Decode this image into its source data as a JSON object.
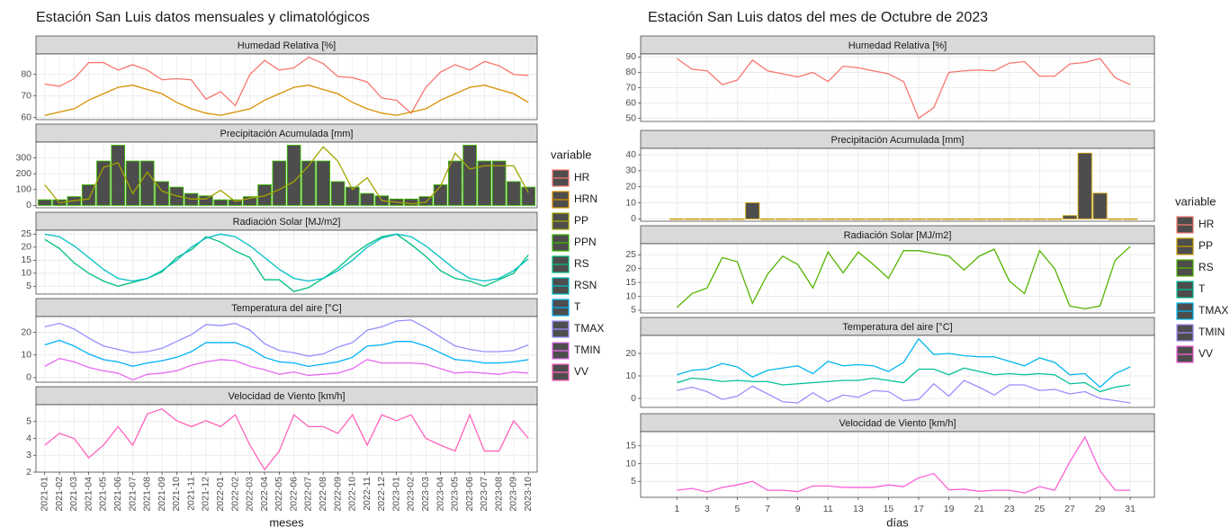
{
  "chart_data": [
    {
      "type": "facet",
      "title": "Estación San Luis datos mensuales y climatológicos",
      "xlabel": "meses",
      "legend_title": "variable",
      "categories": [
        "2021-01",
        "2021-02",
        "2021-03",
        "2021-04",
        "2021-05",
        "2021-06",
        "2021-07",
        "2021-08",
        "2021-09",
        "2021-10",
        "2021-11",
        "2021-12",
        "2022-01",
        "2022-02",
        "2022-03",
        "2022-04",
        "2022-05",
        "2022-06",
        "2022-07",
        "2022-08",
        "2022-09",
        "2022-10",
        "2022-11",
        "2022-12",
        "2023-01",
        "2023-02",
        "2023-03",
        "2023-04",
        "2023-05",
        "2023-06",
        "2023-07",
        "2023-08",
        "2023-09",
        "2023-10"
      ],
      "legend": [
        {
          "name": "HR",
          "color": "#F8766D"
        },
        {
          "name": "HRN",
          "color": "#D89000"
        },
        {
          "name": "PP",
          "color": "#A3A500"
        },
        {
          "name": "PPN",
          "color": "#39B600"
        },
        {
          "name": "RS",
          "color": "#00BF7D"
        },
        {
          "name": "RSN",
          "color": "#00BFC4"
        },
        {
          "name": "T",
          "color": "#00B0F6"
        },
        {
          "name": "TMAX",
          "color": "#9590FF"
        },
        {
          "name": "TMIN",
          "color": "#E76BF3"
        },
        {
          "name": "VV",
          "color": "#FF62BC"
        }
      ],
      "panels": [
        {
          "title": "Humedad Relativa [%]",
          "ylim": [
            59,
            89.5
          ],
          "yticks": [
            60,
            70,
            80
          ],
          "series": [
            {
              "name": "HR",
              "type": "line",
              "color": "#F8766D",
              "values": [
                75.5,
                74.5,
                78,
                85.5,
                85.5,
                82,
                84.5,
                82,
                77.5,
                78,
                77.5,
                68.5,
                72,
                65.5,
                80,
                86.5,
                82,
                83,
                88,
                85,
                79,
                78.5,
                76.5,
                69,
                68,
                62,
                74,
                81,
                84.5,
                82,
                86,
                84,
                80,
                79.5
              ]
            },
            {
              "name": "HRN",
              "type": "line",
              "color": "#D89000",
              "values": [
                61,
                62.5,
                64,
                68,
                71,
                74,
                75,
                73,
                71,
                67,
                64,
                62,
                61,
                62.5,
                64,
                68,
                71,
                74,
                75,
                73,
                71,
                67,
                64,
                62,
                61,
                62.5,
                64,
                68,
                71,
                74,
                75,
                73,
                71,
                67
              ]
            }
          ]
        },
        {
          "title": "Precipitación Acumulada [mm]",
          "ylim": [
            -15,
            400
          ],
          "yticks": [
            0,
            100,
            200,
            300
          ],
          "series": [
            {
              "name": "PPN",
              "type": "bar",
              "color": "#39B600",
              "values": [
                35,
                35,
                55,
                130,
                280,
                380,
                280,
                280,
                150,
                115,
                75,
                60,
                35,
                35,
                55,
                130,
                280,
                380,
                280,
                280,
                150,
                115,
                75,
                60,
                40,
                40,
                55,
                130,
                280,
                380,
                280,
                280,
                150,
                115
              ]
            },
            {
              "name": "PP",
              "type": "line",
              "color": "#A3A500",
              "values": [
                130,
                15,
                30,
                40,
                240,
                270,
                75,
                210,
                90,
                60,
                40,
                40,
                95,
                25,
                45,
                60,
                100,
                150,
                250,
                370,
                280,
                100,
                175,
                30,
                20,
                10,
                20,
                120,
                330,
                230,
                250,
                250,
                250,
                80
              ]
            }
          ]
        },
        {
          "title": "Radiación Solar [MJ/m2]",
          "ylim": [
            2,
            26.5
          ],
          "yticks": [
            5,
            10,
            15,
            20,
            25
          ],
          "series": [
            {
              "name": "RS",
              "type": "line",
              "color": "#00BF7D",
              "values": [
                23,
                19.5,
                14,
                10,
                7,
                5,
                6.5,
                8,
                10.5,
                16,
                19,
                24,
                22,
                18.5,
                16,
                7.5,
                7.5,
                3,
                4.5,
                8,
                12,
                17,
                21,
                24,
                25,
                21,
                16.5,
                11,
                8,
                7,
                5,
                7.5,
                10,
                17
              ]
            },
            {
              "name": "RSN",
              "type": "line",
              "color": "#00BFC4",
              "values": [
                25,
                24,
                20.5,
                16,
                11.5,
                8,
                7,
                8,
                11,
                15,
                20,
                23.5,
                25,
                24,
                20.5,
                16,
                11.5,
                8,
                7,
                8,
                11,
                15,
                20,
                23.5,
                25,
                24,
                20.5,
                16,
                11.5,
                8,
                7,
                8,
                11,
                15.5
              ]
            }
          ]
        },
        {
          "title": "Temperatura del aire [°C]",
          "ylim": [
            -2,
            27
          ],
          "yticks": [
            0,
            10,
            20
          ],
          "series": [
            {
              "name": "TMAX",
              "type": "line",
              "color": "#9590FF",
              "values": [
                22.5,
                24,
                21.5,
                17.5,
                14,
                12.5,
                11,
                11.5,
                13,
                16,
                19,
                23.5,
                23,
                24,
                21,
                15,
                12,
                11,
                9.5,
                10.5,
                13.5,
                15.5,
                21,
                22.5,
                25,
                25.5,
                22,
                18,
                14,
                12.5,
                11.5,
                11.5,
                12,
                14.5
              ]
            },
            {
              "name": "T",
              "type": "line",
              "color": "#00B0F6",
              "values": [
                14.5,
                16.5,
                14,
                10.5,
                8,
                7,
                5,
                6.5,
                7.5,
                9,
                11.5,
                15.5,
                15.5,
                15.5,
                13,
                9,
                7,
                6.5,
                5,
                6,
                7,
                9,
                14,
                14.5,
                16,
                16,
                14,
                11,
                8,
                7.5,
                6.5,
                6.5,
                7,
                8
              ]
            },
            {
              "name": "TMIN",
              "type": "line",
              "color": "#E76BF3",
              "values": [
                5,
                8.5,
                7,
                4.5,
                3,
                2,
                -1,
                1.5,
                2,
                3,
                5.5,
                7,
                8,
                7.5,
                5,
                3.5,
                1.5,
                2.5,
                1,
                1.5,
                2,
                4,
                8,
                6.5,
                6.5,
                6.5,
                6,
                4,
                2,
                2.5,
                2,
                1.5,
                2.5,
                2
              ]
            }
          ]
        },
        {
          "title": "Velocidad de Viento [km/h]",
          "ylim": [
            2,
            6
          ],
          "yticks": [
            2,
            3,
            4,
            5
          ],
          "series": [
            {
              "name": "VV",
              "type": "line",
              "color": "#FF62BC",
              "values": [
                3.6,
                4.3,
                4,
                2.85,
                3.6,
                4.7,
                3.6,
                5.45,
                5.75,
                5.05,
                4.7,
                5.05,
                4.7,
                5.4,
                3.6,
                2.15,
                3.25,
                5.4,
                4.7,
                4.7,
                4.3,
                5.4,
                3.6,
                5.4,
                5.05,
                5.4,
                4,
                3.6,
                3.25,
                5.4,
                3.25,
                3.25,
                5.05,
                4
              ]
            }
          ]
        }
      ]
    },
    {
      "type": "facet",
      "title": "Estación San Luis datos del mes de Octubre de 2023",
      "xlabel": "días",
      "legend_title": "variable",
      "x": [
        1,
        2,
        3,
        4,
        5,
        6,
        7,
        8,
        9,
        10,
        11,
        12,
        13,
        14,
        15,
        16,
        17,
        18,
        19,
        20,
        21,
        22,
        23,
        24,
        25,
        26,
        27,
        28,
        29,
        30,
        31
      ],
      "xlim": [
        -1.4,
        32.6
      ],
      "xticks": [
        1,
        3,
        5,
        7,
        9,
        11,
        13,
        15,
        17,
        19,
        21,
        23,
        25,
        27,
        29,
        31
      ],
      "legend": [
        {
          "name": "HR",
          "color": "#F8766D"
        },
        {
          "name": "PP",
          "color": "#C49A00"
        },
        {
          "name": "RS",
          "color": "#53B400"
        },
        {
          "name": "T",
          "color": "#00C094"
        },
        {
          "name": "TMAX",
          "color": "#00B6EB"
        },
        {
          "name": "TMIN",
          "color": "#A58AFF"
        },
        {
          "name": "VV",
          "color": "#FB61D7"
        }
      ],
      "panels": [
        {
          "title": "Humedad Relativa [%]",
          "ylim": [
            48,
            92
          ],
          "yticks": [
            50,
            60,
            70,
            80,
            90
          ],
          "series": [
            {
              "name": "HR",
              "type": "line",
              "color": "#F8766D",
              "values": [
                89,
                82,
                81,
                72,
                75,
                88,
                81,
                79,
                77,
                80,
                74,
                84,
                83,
                81,
                79,
                74,
                50,
                57,
                80,
                81,
                81.5,
                81,
                86,
                87,
                77.5,
                77.5,
                85.5,
                86.5,
                89,
                76.5,
                72
              ]
            }
          ]
        },
        {
          "title": "Precipitación Acumulada [mm]",
          "ylim": [
            -1.5,
            44
          ],
          "yticks": [
            0,
            10,
            20,
            30,
            40
          ],
          "series": [
            {
              "name": "PP",
              "type": "bar",
              "color": "#C49A00",
              "values": [
                0,
                0,
                0,
                0,
                0,
                10,
                0,
                0,
                0,
                0,
                0,
                0,
                0,
                0,
                0,
                0,
                0,
                0,
                0,
                0,
                0,
                0,
                0,
                0,
                0,
                0,
                2,
                41,
                16,
                0,
                0
              ]
            }
          ]
        },
        {
          "title": "Radiación Solar [MJ/m2]",
          "ylim": [
            4,
            29
          ],
          "yticks": [
            5,
            10,
            15,
            20,
            25
          ],
          "series": [
            {
              "name": "RS",
              "type": "line",
              "color": "#53B400",
              "values": [
                6,
                11,
                13,
                24,
                22.5,
                7.5,
                18,
                24.5,
                21.5,
                13,
                26,
                18.5,
                26,
                21.5,
                16.5,
                26.5,
                26.5,
                25.5,
                24.5,
                19.5,
                24.5,
                27,
                15.5,
                11,
                26.5,
                20,
                6.5,
                5.5,
                6.5,
                23,
                28
              ]
            }
          ]
        },
        {
          "title": "Temperatura del aire [°C]",
          "ylim": [
            -4,
            28
          ],
          "yticks": [
            0,
            10,
            20
          ],
          "series": [
            {
              "name": "TMAX",
              "type": "line",
              "color": "#00B6EB",
              "values": [
                10.5,
                12.5,
                13,
                15.5,
                14,
                9.5,
                12.5,
                13.5,
                14.5,
                11,
                16.5,
                14.5,
                15,
                14.5,
                12,
                16,
                26.5,
                19.5,
                20,
                19,
                18.5,
                18.5,
                16.5,
                14.5,
                18,
                16,
                10.5,
                11,
                5,
                11,
                14
              ]
            },
            {
              "name": "T",
              "type": "line",
              "color": "#00C094",
              "values": [
                7,
                9,
                8.5,
                7.5,
                8,
                7.5,
                7.5,
                6,
                6.5,
                7,
                7.5,
                8,
                8,
                9,
                8,
                7,
                13,
                13,
                10.5,
                13.5,
                12,
                10.5,
                11,
                10.5,
                11,
                10.5,
                6.5,
                7,
                3,
                5,
                6
              ]
            },
            {
              "name": "TMIN",
              "type": "line",
              "color": "#A58AFF",
              "values": [
                3.5,
                5,
                3,
                -0.5,
                1,
                5.5,
                2,
                -1.5,
                -2,
                2.5,
                -1.5,
                1.5,
                0.5,
                3.5,
                3,
                -1,
                -0.5,
                6.5,
                1,
                8,
                5,
                1.5,
                6,
                6,
                3.5,
                4,
                2,
                3,
                0,
                -1,
                -2
              ]
            }
          ]
        },
        {
          "title": "Velocidad de Viento [km/h]",
          "ylim": [
            0.5,
            19
          ],
          "yticks": [
            5,
            10,
            15
          ],
          "series": [
            {
              "name": "VV",
              "type": "line",
              "color": "#FB61D7",
              "values": [
                2.5,
                3,
                2,
                3.3,
                4,
                5,
                2.5,
                2.5,
                2.1,
                3.7,
                3.7,
                3.3,
                3.3,
                3.3,
                4,
                3.5,
                6,
                7.2,
                2.6,
                2.8,
                2.2,
                2.5,
                2.5,
                1.7,
                3.5,
                2.5,
                10.5,
                17.5,
                8,
                2.5,
                2.5
              ]
            }
          ]
        }
      ]
    }
  ]
}
